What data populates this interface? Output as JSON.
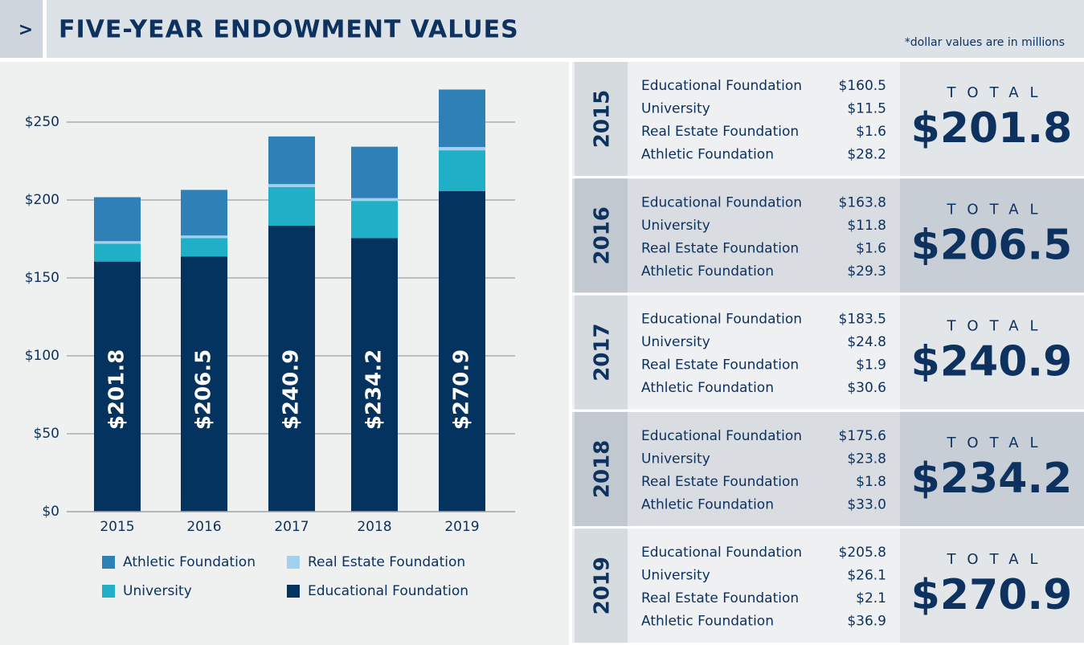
{
  "header": {
    "marker": ">",
    "title": "FIVE-YEAR ENDOWMENT VALUES",
    "note": "*dollar values are in millions"
  },
  "chart_data": {
    "type": "bar",
    "stacked": true,
    "categories": [
      "2015",
      "2016",
      "2017",
      "2018",
      "2019"
    ],
    "series": [
      {
        "name": "Educational Foundation",
        "color": "#05335f",
        "values": [
          160.5,
          163.8,
          183.5,
          175.6,
          205.8
        ]
      },
      {
        "name": "University",
        "color": "#1fb0c7",
        "values": [
          11.5,
          11.8,
          24.8,
          23.8,
          26.1
        ]
      },
      {
        "name": "Real Estate Foundation",
        "color": "#a3d0ef",
        "values": [
          1.6,
          1.6,
          1.9,
          1.8,
          2.1
        ]
      },
      {
        "name": "Athletic Foundation",
        "color": "#2f80b6",
        "values": [
          28.2,
          29.3,
          30.6,
          33.0,
          36.9
        ]
      }
    ],
    "totals": {
      "values": [
        201.8,
        206.5,
        240.9,
        234.2,
        270.9
      ],
      "value_labels": [
        "$201.8",
        "$206.5",
        "$240.9",
        "$234.2",
        "$270.9"
      ]
    },
    "ylim": [
      0,
      280
    ],
    "yticks": [
      {
        "value": 0,
        "label": "$0"
      },
      {
        "value": 50,
        "label": "$50"
      },
      {
        "value": 100,
        "label": "$100"
      },
      {
        "value": 150,
        "label": "$150"
      },
      {
        "value": 200,
        "label": "$200"
      },
      {
        "value": 250,
        "label": "$250"
      }
    ],
    "grid": true
  },
  "tables": [
    {
      "year": "2015",
      "rows": [
        [
          "Educational Foundation",
          "$160.5"
        ],
        [
          "University",
          "$11.5"
        ],
        [
          "Real Estate Foundation",
          "$1.6"
        ],
        [
          "Athletic Foundation",
          "$28.2"
        ]
      ],
      "total_label": "TOTAL",
      "total": "$201.8"
    },
    {
      "year": "2016",
      "rows": [
        [
          "Educational Foundation",
          "$163.8"
        ],
        [
          "University",
          "$11.8"
        ],
        [
          "Real Estate Foundation",
          "$1.6"
        ],
        [
          "Athletic Foundation",
          "$29.3"
        ]
      ],
      "total_label": "TOTAL",
      "total": "$206.5"
    },
    {
      "year": "2017",
      "rows": [
        [
          "Educational Foundation",
          "$183.5"
        ],
        [
          "University",
          "$24.8"
        ],
        [
          "Real Estate Foundation",
          "$1.9"
        ],
        [
          "Athletic Foundation",
          "$30.6"
        ]
      ],
      "total_label": "TOTAL",
      "total": "$240.9"
    },
    {
      "year": "2018",
      "rows": [
        [
          "Educational Foundation",
          "$175.6"
        ],
        [
          "University",
          "$23.8"
        ],
        [
          "Real Estate Foundation",
          "$1.8"
        ],
        [
          "Athletic Foundation",
          "$33.0"
        ]
      ],
      "total_label": "TOTAL",
      "total": "$234.2"
    },
    {
      "year": "2019",
      "rows": [
        [
          "Educational Foundation",
          "$205.8"
        ],
        [
          "University",
          "$26.1"
        ],
        [
          "Real Estate Foundation",
          "$2.1"
        ],
        [
          "Athletic Foundation",
          "$36.9"
        ]
      ],
      "total_label": "TOTAL",
      "total": "$270.9"
    }
  ]
}
